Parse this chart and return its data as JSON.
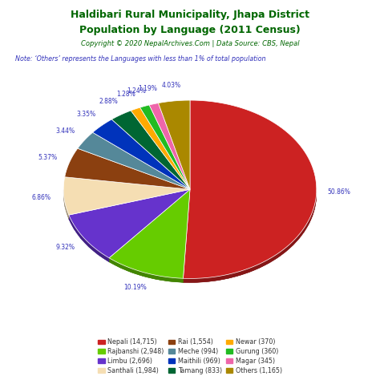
{
  "title_line1": "Haldibari Rural Municipality, Jhapa District",
  "title_line2": "Population by Language (2011 Census)",
  "copyright": "Copyright © 2020 NepalArchives.Com | Data Source: CBS, Nepal",
  "note": "Note: ‘Others’ represents the Languages with less than 1% of total population",
  "labels": [
    "Nepali",
    "Rajbanshi",
    "Limbu",
    "Santhali",
    "Rai",
    "Meche",
    "Maithili",
    "Tamang",
    "Newar",
    "Gurung",
    "Magar",
    "Others"
  ],
  "values": [
    14715,
    2948,
    2696,
    1984,
    1554,
    994,
    969,
    833,
    370,
    360,
    345,
    1165
  ],
  "colors": [
    "#cc2222",
    "#66cc00",
    "#6633cc",
    "#f5deb3",
    "#8b4010",
    "#558899",
    "#0033bb",
    "#006633",
    "#ffaa00",
    "#22bb22",
    "#ee66aa",
    "#aa8800"
  ],
  "percentages": [
    "50.86%",
    "10.19%",
    "9.32%",
    "6.86%",
    "5.37%",
    "3.44%",
    "3.35%",
    "2.88%",
    "1.28%",
    "1.24%",
    "1.19%",
    "4.03%"
  ],
  "pct_color": "#3333bb",
  "title_color": "#006600",
  "copyright_color": "#006600",
  "note_color": "#3333bb",
  "bg_color": "#ffffff",
  "legend_labels": [
    "Nepali (14,715)",
    "Rajbanshi (2,948)",
    "Limbu (2,696)",
    "Santhali (1,984)",
    "Rai (1,554)",
    "Meche (994)",
    "Maithili (969)",
    "Tamang (833)",
    "Newar (370)",
    "Gurung (360)",
    "Magar (345)",
    "Others (1,165)"
  ]
}
